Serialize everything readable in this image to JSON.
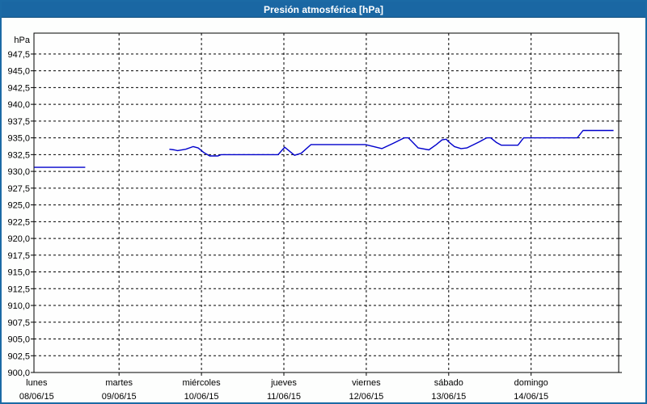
{
  "window": {
    "title": "Presión atmosférica [hPa]"
  },
  "colors": {
    "titlebar_bg": "#1a67a3",
    "panel_border": "#1b6aa5",
    "title_text": "#ffffff",
    "grid": "#000000",
    "axis": "#000000",
    "plot_bg": "#fefefe",
    "series_line": "#0000cc"
  },
  "chart_data": {
    "type": "line",
    "title": "Presión atmosférica [hPa]",
    "unit_label": "hPa",
    "grid": "dashed",
    "legend_position": "none",
    "y_axis": {
      "min": 900,
      "max": 950.6,
      "tick_step": 2.5,
      "tick_labels": [
        "947,5",
        "945,0",
        "942,5",
        "940,0",
        "937,5",
        "935,0",
        "932,5",
        "930,0",
        "927,5",
        "925,0",
        "922,5",
        "920,0",
        "917,5",
        "915,0",
        "912,5",
        "910,0",
        "907,5",
        "905,0",
        "902,5",
        "900,0"
      ],
      "tick_values": [
        947.5,
        945.0,
        942.5,
        940.0,
        937.5,
        935.0,
        932.5,
        930.0,
        927.5,
        925.0,
        922.5,
        920.0,
        917.5,
        915.0,
        912.5,
        910.0,
        907.5,
        905.0,
        902.5,
        900.0
      ]
    },
    "x_axis": {
      "unit": "days",
      "range_days": [
        0,
        7.06
      ],
      "days": [
        {
          "name": "lunes",
          "date": "08/06/15"
        },
        {
          "name": "martes",
          "date": "09/06/15"
        },
        {
          "name": "miércoles",
          "date": "10/06/15"
        },
        {
          "name": "jueves",
          "date": "11/06/15"
        },
        {
          "name": "viernes",
          "date": "12/06/15"
        },
        {
          "name": "sábado",
          "date": "13/06/15"
        },
        {
          "name": "domingo",
          "date": "14/06/15"
        }
      ]
    },
    "series": [
      {
        "name": "Presión atmosférica",
        "color": "#0000cc",
        "segments": [
          [
            [
              -0.03,
              930.6
            ],
            [
              0.59,
              930.6
            ]
          ],
          [
            [
              1.61,
              933.3
            ],
            [
              1.67,
              933.2
            ],
            [
              1.71,
              933.1
            ],
            [
              1.81,
              933.3
            ],
            [
              1.9,
              933.7
            ],
            [
              1.96,
              933.5
            ],
            [
              2.03,
              932.8
            ],
            [
              2.1,
              932.3
            ],
            [
              2.2,
              932.3
            ],
            [
              2.24,
              932.5
            ],
            [
              2.93,
              932.5
            ],
            [
              3.01,
              933.6
            ],
            [
              3.07,
              933.0
            ],
            [
              3.13,
              932.4
            ],
            [
              3.21,
              932.7
            ],
            [
              3.33,
              934.0
            ],
            [
              3.99,
              934.0
            ],
            [
              4.19,
              933.4
            ],
            [
              4.33,
              934.2
            ],
            [
              4.46,
              935.0
            ],
            [
              4.51,
              935.0
            ],
            [
              4.63,
              933.5
            ],
            [
              4.76,
              933.2
            ],
            [
              4.85,
              934.0
            ],
            [
              4.92,
              934.7
            ],
            [
              4.97,
              934.8
            ],
            [
              5.0,
              934.4
            ],
            [
              5.07,
              933.7
            ],
            [
              5.15,
              933.4
            ],
            [
              5.22,
              933.5
            ],
            [
              5.37,
              934.4
            ],
            [
              5.46,
              935.0
            ],
            [
              5.51,
              935.0
            ],
            [
              5.58,
              934.3
            ],
            [
              5.64,
              933.9
            ],
            [
              5.84,
              933.9
            ],
            [
              5.91,
              935.0
            ],
            [
              6.56,
              935.0
            ],
            [
              6.63,
              936.1
            ],
            [
              7.0,
              936.1
            ]
          ]
        ]
      }
    ]
  }
}
